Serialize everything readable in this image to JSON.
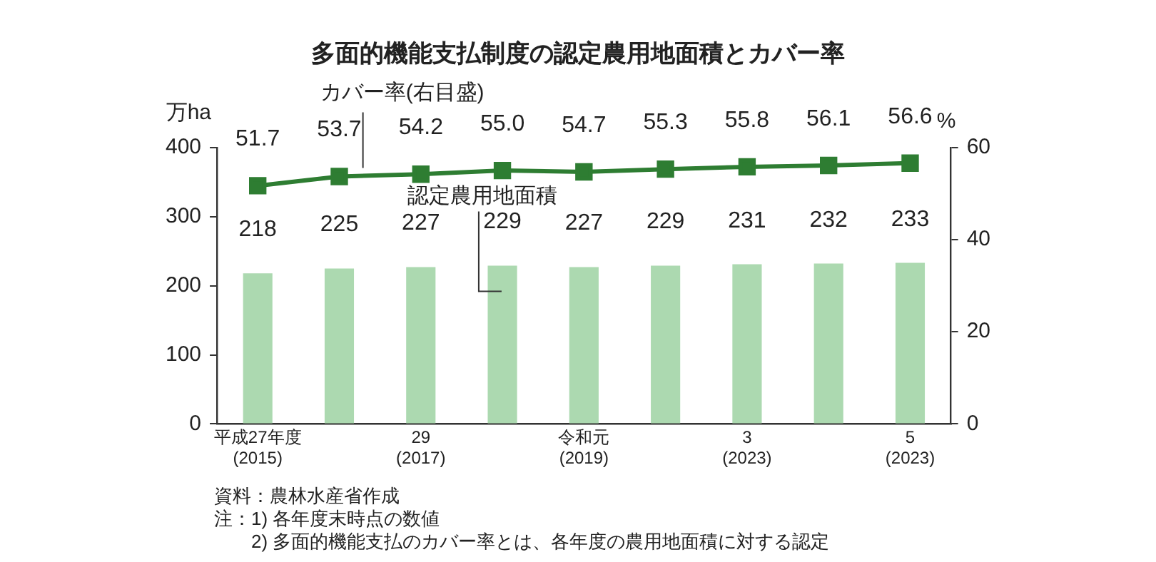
{
  "chart_data": {
    "type": "bar",
    "title": "多面的機能支払制度の認定農用地面積とカバー率",
    "categories": [
      "平成27年度\n(2015)",
      null,
      "29\n(2017)",
      null,
      "令和元\n(2019)",
      null,
      "3\n(2023)",
      null,
      "5\n(2023)"
    ],
    "series": [
      {
        "name": "認定農用地面積",
        "color": "#acd9b0",
        "values": [
          218,
          225,
          227,
          229,
          227,
          229,
          231,
          232,
          233
        ]
      },
      {
        "name": "カバー率(右目盛)",
        "type": "line",
        "axis": "y2",
        "marker": "square",
        "color": "#2e7d32",
        "values": [
          51.7,
          53.7,
          54.2,
          55.0,
          54.7,
          55.3,
          55.8,
          56.1,
          56.6
        ],
        "value_labels": [
          "51.7",
          "53.7",
          "54.2",
          "55.0",
          "54.7",
          "55.3",
          "55.8",
          "56.1",
          "56.6"
        ]
      }
    ],
    "ylabel": "万ha",
    "y2label": "%",
    "ylim": [
      0,
      400
    ],
    "yticks": [
      0,
      100,
      200,
      300,
      400
    ],
    "y2lim": [
      0,
      60
    ],
    "y2ticks": [
      0,
      20,
      40,
      60
    ],
    "data_labels": true,
    "grid": false,
    "legend": false,
    "annotations": [
      "資料：農林水産省作成",
      "注：1) 各年度末時点の数値",
      "　　2) 多面的機能支払のカバー率とは、各年度の農用地面積に対する認定"
    ]
  }
}
